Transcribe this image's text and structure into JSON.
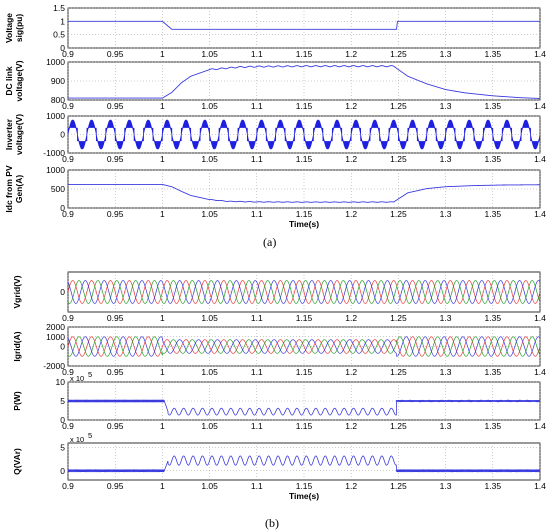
{
  "figure_labels": {
    "a": "(a)",
    "b": "(b)"
  },
  "chart_data": [
    {
      "type": "line",
      "ylabel": "Voltage sig(pu)",
      "xlim": [
        0.9,
        1.4
      ],
      "xticks": [
        "0.9",
        "0.95",
        "1",
        "1.05",
        "1.1",
        "1.15",
        "1.2",
        "1.25",
        "1.3",
        "1.35",
        "1.4"
      ],
      "ylim": [
        0,
        1.5
      ],
      "yticks": [
        "0",
        "0.5",
        "1",
        "1.5"
      ],
      "series": [
        {
          "x": [
            0.9,
            1.0,
            1.01,
            1.248,
            1.249,
            1.4
          ],
          "values": [
            1.0,
            1.0,
            0.7,
            0.7,
            1.0,
            1.0
          ]
        }
      ],
      "grid": true,
      "color": "#3a3adf"
    },
    {
      "type": "line",
      "ylabel": "DC link voltage(V)",
      "xlim": [
        0.9,
        1.4
      ],
      "xticks": [
        "0.9",
        "0.95",
        "1",
        "1.05",
        "1.1",
        "1.15",
        "1.2",
        "1.25",
        "1.3",
        "1.35",
        "1.4"
      ],
      "ylim": [
        800,
        1000
      ],
      "yticks": [
        "800",
        "900",
        "1000"
      ],
      "series": [
        {
          "x": [
            0.9,
            1.0,
            1.01,
            1.02,
            1.03,
            1.05,
            1.08,
            1.1,
            1.15,
            1.2,
            1.245,
            1.25,
            1.26,
            1.28,
            1.3,
            1.32,
            1.35,
            1.38,
            1.4
          ],
          "values": [
            810,
            810,
            840,
            890,
            925,
            960,
            973,
            976,
            978,
            978,
            978,
            960,
            925,
            885,
            855,
            838,
            822,
            812,
            808
          ]
        }
      ],
      "grid": true,
      "color": "#3a3adf"
    },
    {
      "type": "line",
      "ylabel": "Inverter voltage(V)",
      "xlim": [
        0.9,
        1.4
      ],
      "xticks": [
        "0.9",
        "0.95",
        "1",
        "1.05",
        "1.1",
        "1.15",
        "1.2",
        "1.25",
        "1.3",
        "1.35",
        "1.4"
      ],
      "ylim": [
        -1000,
        1000
      ],
      "yticks": [
        "-1000",
        "0",
        "1000"
      ],
      "series": [
        {
          "note_freq_hz": 50,
          "amplitude": 800
        }
      ],
      "grid": true,
      "color": "#1f1fe0"
    },
    {
      "type": "line",
      "ylabel": "Idc from PV Gen(A)",
      "xlabel": "Time(s)",
      "xlim": [
        0.9,
        1.4
      ],
      "xticks": [
        "0.9",
        "0.95",
        "1",
        "1.05",
        "1.1",
        "1.15",
        "1.2",
        "1.25",
        "1.3",
        "1.35",
        "1.4"
      ],
      "ylim": [
        0,
        1000
      ],
      "yticks": [
        "0",
        "500",
        "1000"
      ],
      "series": [
        {
          "x": [
            0.9,
            1.0,
            1.01,
            1.02,
            1.03,
            1.05,
            1.07,
            1.1,
            1.15,
            1.2,
            1.245,
            1.25,
            1.26,
            1.28,
            1.3,
            1.33,
            1.36,
            1.4
          ],
          "values": [
            620,
            620,
            560,
            440,
            330,
            220,
            175,
            160,
            155,
            155,
            158,
            240,
            400,
            510,
            560,
            590,
            605,
            612
          ]
        }
      ],
      "grid": true,
      "color": "#3a3adf"
    },
    {
      "type": "line",
      "ylabel": "Vgrid(V)",
      "xlim": [
        0.9,
        1.4
      ],
      "xticks": [
        "0.9",
        "0.95",
        "1",
        "1.05",
        "1.1",
        "1.15",
        "1.2",
        "1.25",
        "1.3",
        "1.35",
        "1.4"
      ],
      "ylim": [
        -700,
        700
      ],
      "yticks": [
        "0"
      ],
      "series": [
        {
          "amplitude": 400,
          "phase_deg": 0,
          "color": "#e83a3a"
        },
        {
          "amplitude": 400,
          "phase_deg": -120,
          "color": "#2aa02a"
        },
        {
          "amplitude": 400,
          "phase_deg": 120,
          "color": "#3a3adf"
        }
      ],
      "grid": true
    },
    {
      "type": "line",
      "ylabel": "Igrid(A)",
      "xlim": [
        0.9,
        1.4
      ],
      "xticks": [
        "0.9",
        "0.95",
        "1",
        "1.05",
        "1.1",
        "1.15",
        "1.2",
        "1.25",
        "1.3",
        "1.35",
        "1.4"
      ],
      "ylim": [
        -2000,
        2000
      ],
      "yticks": [
        "-2000",
        "0",
        "1000",
        "2000"
      ],
      "series": [
        {
          "amplitude_before": 1000,
          "amplitude_during": 700,
          "phase_deg": 0,
          "color": "#e83a3a"
        },
        {
          "amplitude_before": 1000,
          "amplitude_during": 700,
          "phase_deg": -120,
          "color": "#2aa02a"
        },
        {
          "amplitude_before": 1000,
          "amplitude_during": 700,
          "phase_deg": 120,
          "color": "#3a3adf"
        }
      ],
      "grid": true
    },
    {
      "type": "line",
      "ylabel": "P(W)",
      "exponent": "x 10",
      "exponent_power": "5",
      "xlim": [
        0.9,
        1.4
      ],
      "xticks": [
        "0.9",
        "0.95",
        "1",
        "1.05",
        "1.1",
        "1.15",
        "1.2",
        "1.25",
        "1.3",
        "1.35",
        "1.4"
      ],
      "ylim": [
        0,
        10
      ],
      "yticks": [
        "0",
        "5",
        "10"
      ],
      "series": [
        {
          "before": 5.0,
          "during_mean": 2.2,
          "during_ripple": 0.9,
          "after": 5.0
        }
      ],
      "grid": true,
      "color": "#3a3adf"
    },
    {
      "type": "line",
      "ylabel": "Q(VAr)",
      "xlabel": "Time(s)",
      "exponent": "x 10",
      "exponent_power": "5",
      "xlim": [
        0.9,
        1.4
      ],
      "xticks": [
        "0.9",
        "0.95",
        "1",
        "1.05",
        "1.1",
        "1.15",
        "1.2",
        "1.25",
        "1.3",
        "1.35",
        "1.4"
      ],
      "ylim": [
        -2,
        6
      ],
      "yticks": [
        "0",
        "5"
      ],
      "series": [
        {
          "before": 0.0,
          "during_mean": 2.2,
          "during_ripple": 1.0,
          "after": 0.0
        }
      ],
      "grid": true,
      "color": "#3a3adf"
    }
  ]
}
